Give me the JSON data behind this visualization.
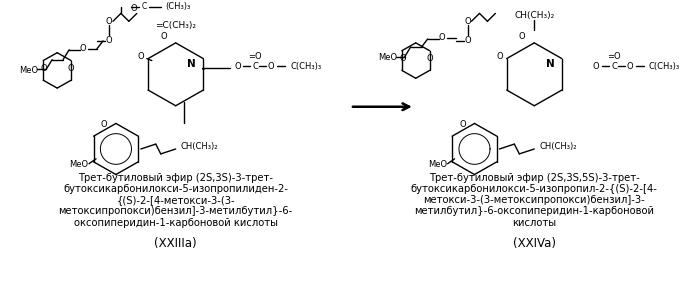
{
  "background_color": "#ffffff",
  "label_left_lines": [
    "Трет-бутиловый эфир (2S,3S)-3-трет-",
    "бутоксикарбонилокси-5-изопропилиден-2-",
    "{(S)-2-[4-метокси-3-(3-",
    "метоксипропокси)бензил]-3-метилбутил}-6-",
    "оксопиперидин-1-карбоновой кислоты"
  ],
  "label_right_lines": [
    "Трет-бутиловый эфир (2S,3S,5S)-3-трет-",
    "бутоксикарбонилокси-5-изопропил-2-{(S)-2-[4-",
    "метокси-3-(3-метоксипропокси)бензил]-3-",
    "метилбутил}-6-оксопиперидин-1-карбоновой",
    "кислоты"
  ],
  "label_left_code": "(XXIIIa)",
  "label_right_code": "(XXIVa)",
  "font_size_label": 7.2,
  "font_size_code": 8.5
}
